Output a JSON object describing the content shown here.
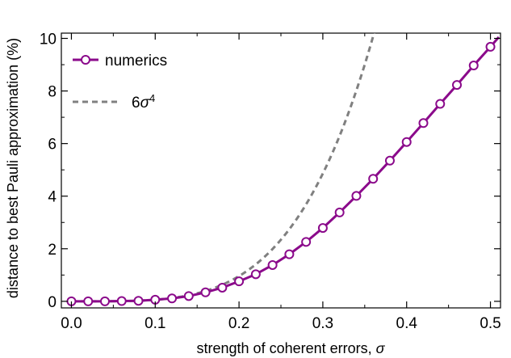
{
  "chart_data": {
    "type": "line",
    "title": "",
    "xlabel": "strength of coherent errors, ",
    "xlabel_symbol": "σ",
    "ylabel": "distance to best Pauli approximation (%)",
    "xlim": [
      -0.012,
      0.512
    ],
    "ylim": [
      -0.25,
      10.2
    ],
    "xticks": [
      0.0,
      0.1,
      0.2,
      0.3,
      0.4,
      0.5
    ],
    "xtick_labels": [
      "0.0",
      "0.1",
      "0.2",
      "0.3",
      "0.4",
      "0.5"
    ],
    "yticks": [
      0,
      2,
      4,
      6,
      8,
      10
    ],
    "ytick_labels": [
      "0",
      "2",
      "4",
      "6",
      "8",
      "10"
    ],
    "grid": false,
    "legend_position": "top-left",
    "series": [
      {
        "name": "numerics",
        "style": "solid-line-open-circles",
        "color": "#8b0a8b",
        "x": [
          0.0,
          0.02,
          0.04,
          0.06,
          0.08,
          0.1,
          0.12,
          0.14,
          0.16,
          0.18,
          0.2,
          0.22,
          0.24,
          0.26,
          0.28,
          0.3,
          0.32,
          0.34,
          0.36,
          0.38,
          0.4,
          0.42,
          0.44,
          0.46,
          0.48,
          0.5,
          0.51
        ],
        "y": [
          0.0,
          0.0,
          0.0,
          0.01,
          0.02,
          0.06,
          0.11,
          0.2,
          0.34,
          0.52,
          0.76,
          1.03,
          1.38,
          1.79,
          2.26,
          2.79,
          3.38,
          4.01,
          4.66,
          5.35,
          6.06,
          6.78,
          7.51,
          8.23,
          8.97,
          9.68,
          10.05
        ]
      },
      {
        "name": "6σ⁴",
        "label_base": "6",
        "label_symbol": "σ",
        "label_exponent": "4",
        "style": "dashed",
        "color": "#808080",
        "formula": "6*x^4*100",
        "x_max": 0.362
      }
    ]
  }
}
